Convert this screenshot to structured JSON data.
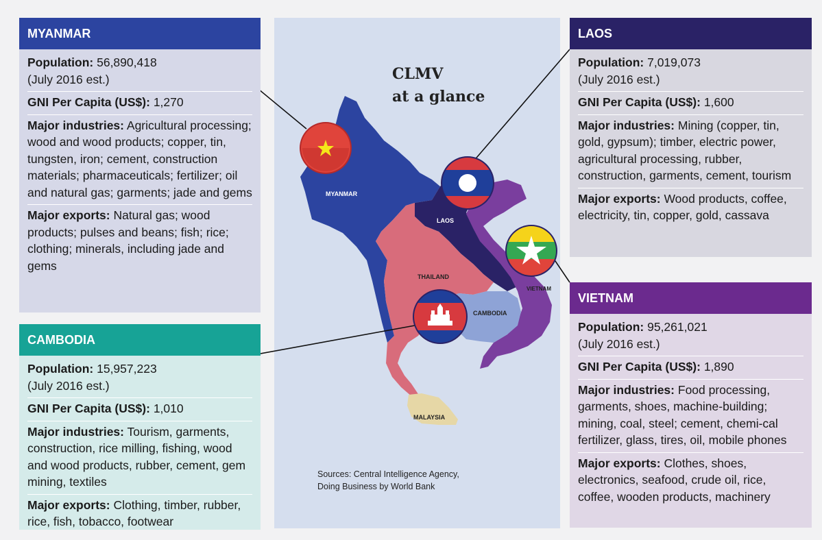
{
  "map": {
    "title_line1": "CLMV",
    "title_line2": "at a glance",
    "labels": {
      "myanmar": "MYANMAR",
      "laos": "LAOS",
      "thailand": "THAILAND",
      "cambodia": "CAMBODIA",
      "vietnam": "VIETNAM",
      "malaysia": "MALAYSIA"
    },
    "sources_line1": "Sources: Central Intelligence Agency,",
    "sources_line2": "Doing Business by World Bank",
    "colors": {
      "myanmar": "#2c44a0",
      "laos": "#2a2266",
      "thailand": "#d86c7b",
      "cambodia": "#8ea3d6",
      "vietnam": "#7a3e9e",
      "malaysia": "#e6d7a6"
    }
  },
  "labels": {
    "population": "Population:",
    "gni": "GNI Per Capita (US$):",
    "industries": "Major industries:",
    "exports": "Major exports:"
  },
  "myanmar": {
    "name": "MYANMAR",
    "population": "56,890,418",
    "population_note": "(July 2016 est.)",
    "gni": "1,270",
    "industries": "Agricultural processing; wood and wood products; copper, tin, tungsten, iron; cement, construction materials; pharmaceuticals; fertilizer; oil and natural gas; garments; jade and gems",
    "exports": "Natural gas; wood products; pulses and beans; fish; rice; clothing; minerals, including jade and gems"
  },
  "laos": {
    "name": "LAOS",
    "population": "7,019,073",
    "population_note": "(July 2016 est.)",
    "gni": "1,600",
    "industries": "Mining (copper, tin, gold, gypsum); timber, electric power, agricultural processing, rubber, construction, garments, cement, tourism",
    "exports": "Wood products, coffee, electricity, tin, copper, gold, cassava"
  },
  "cambodia": {
    "name": "CAMBODIA",
    "population": "15,957,223",
    "population_note": "(July 2016 est.)",
    "gni": "1,010",
    "industries": "Tourism, garments, construction, rice milling, fishing, wood and wood products, rubber, cement, gem mining, textiles",
    "exports": "Clothing, timber, rubber, rice, fish, tobacco, footwear"
  },
  "vietnam": {
    "name": "VIETNAM",
    "population": "95,261,021",
    "population_note": "(July 2016 est.)",
    "gni": "1,890",
    "industries": "Food processing, garments, shoes, machine-building; mining, coal, steel; cement, chemi-cal fertilizer, glass, tires, oil, mobile phones",
    "exports": "Clothes, shoes, electronics, seafood, crude oil, rice, coffee, wooden products, machinery"
  }
}
